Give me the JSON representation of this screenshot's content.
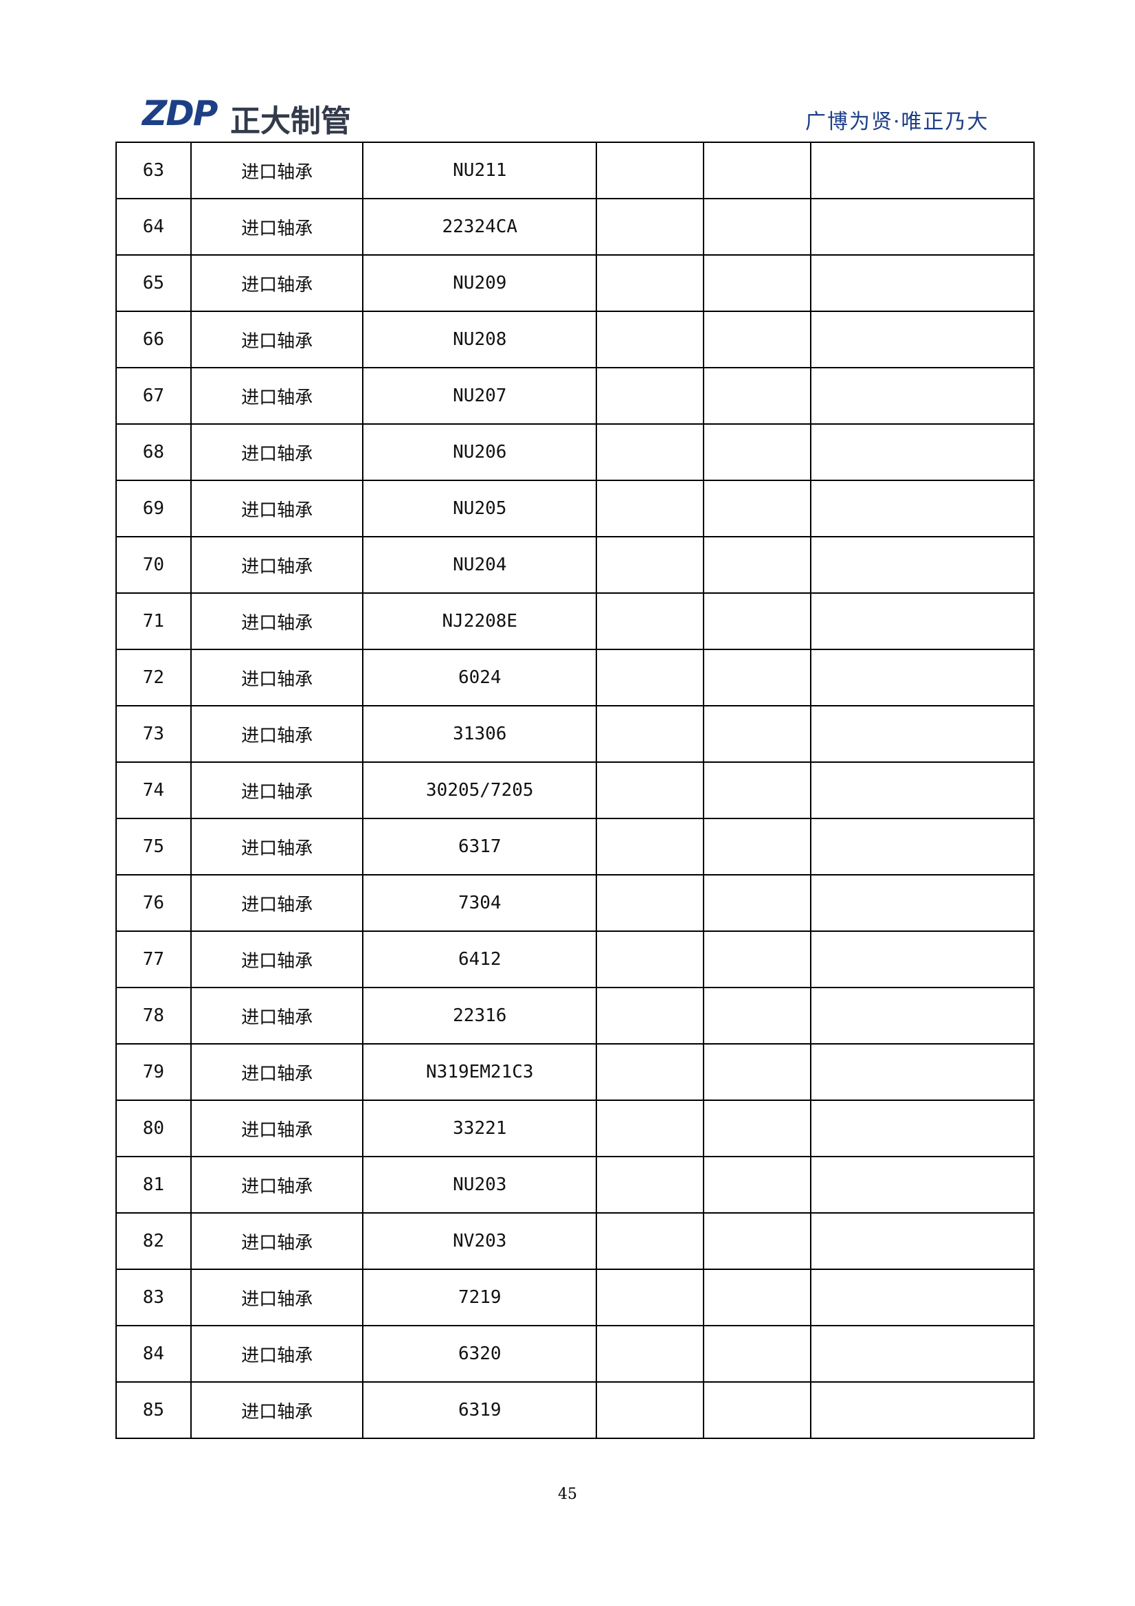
{
  "header": {
    "logo": "ZDP",
    "brand": "正大制管",
    "tagline": "广博为贤·唯正乃大"
  },
  "table": {
    "rows": [
      [
        "63",
        "进口轴承",
        "NU211"
      ],
      [
        "64",
        "进口轴承",
        "22324CA"
      ],
      [
        "65",
        "进口轴承",
        "NU209"
      ],
      [
        "66",
        "进口轴承",
        "NU208"
      ],
      [
        "67",
        "进口轴承",
        "NU207"
      ],
      [
        "68",
        "进口轴承",
        "NU206"
      ],
      [
        "69",
        "进口轴承",
        "NU205"
      ],
      [
        "70",
        "进口轴承",
        "NU204"
      ],
      [
        "71",
        "进口轴承",
        "NJ2208E"
      ],
      [
        "72",
        "进口轴承",
        "6024"
      ],
      [
        "73",
        "进口轴承",
        "31306"
      ],
      [
        "74",
        "进口轴承",
        "30205/7205"
      ],
      [
        "75",
        "进口轴承",
        "6317"
      ],
      [
        "76",
        "进口轴承",
        "7304"
      ],
      [
        "77",
        "进口轴承",
        "6412"
      ],
      [
        "78",
        "进口轴承",
        "22316"
      ],
      [
        "79",
        "进口轴承",
        "N319EM21C3"
      ],
      [
        "80",
        "进口轴承",
        "33221"
      ],
      [
        "81",
        "进口轴承",
        "NU203"
      ],
      [
        "82",
        "进口轴承",
        "NV203"
      ],
      [
        "83",
        "进口轴承",
        "7219"
      ],
      [
        "84",
        "进口轴承",
        "6320"
      ],
      [
        "85",
        "进口轴承",
        "6319"
      ]
    ]
  },
  "footer": {
    "page_number": "45"
  }
}
